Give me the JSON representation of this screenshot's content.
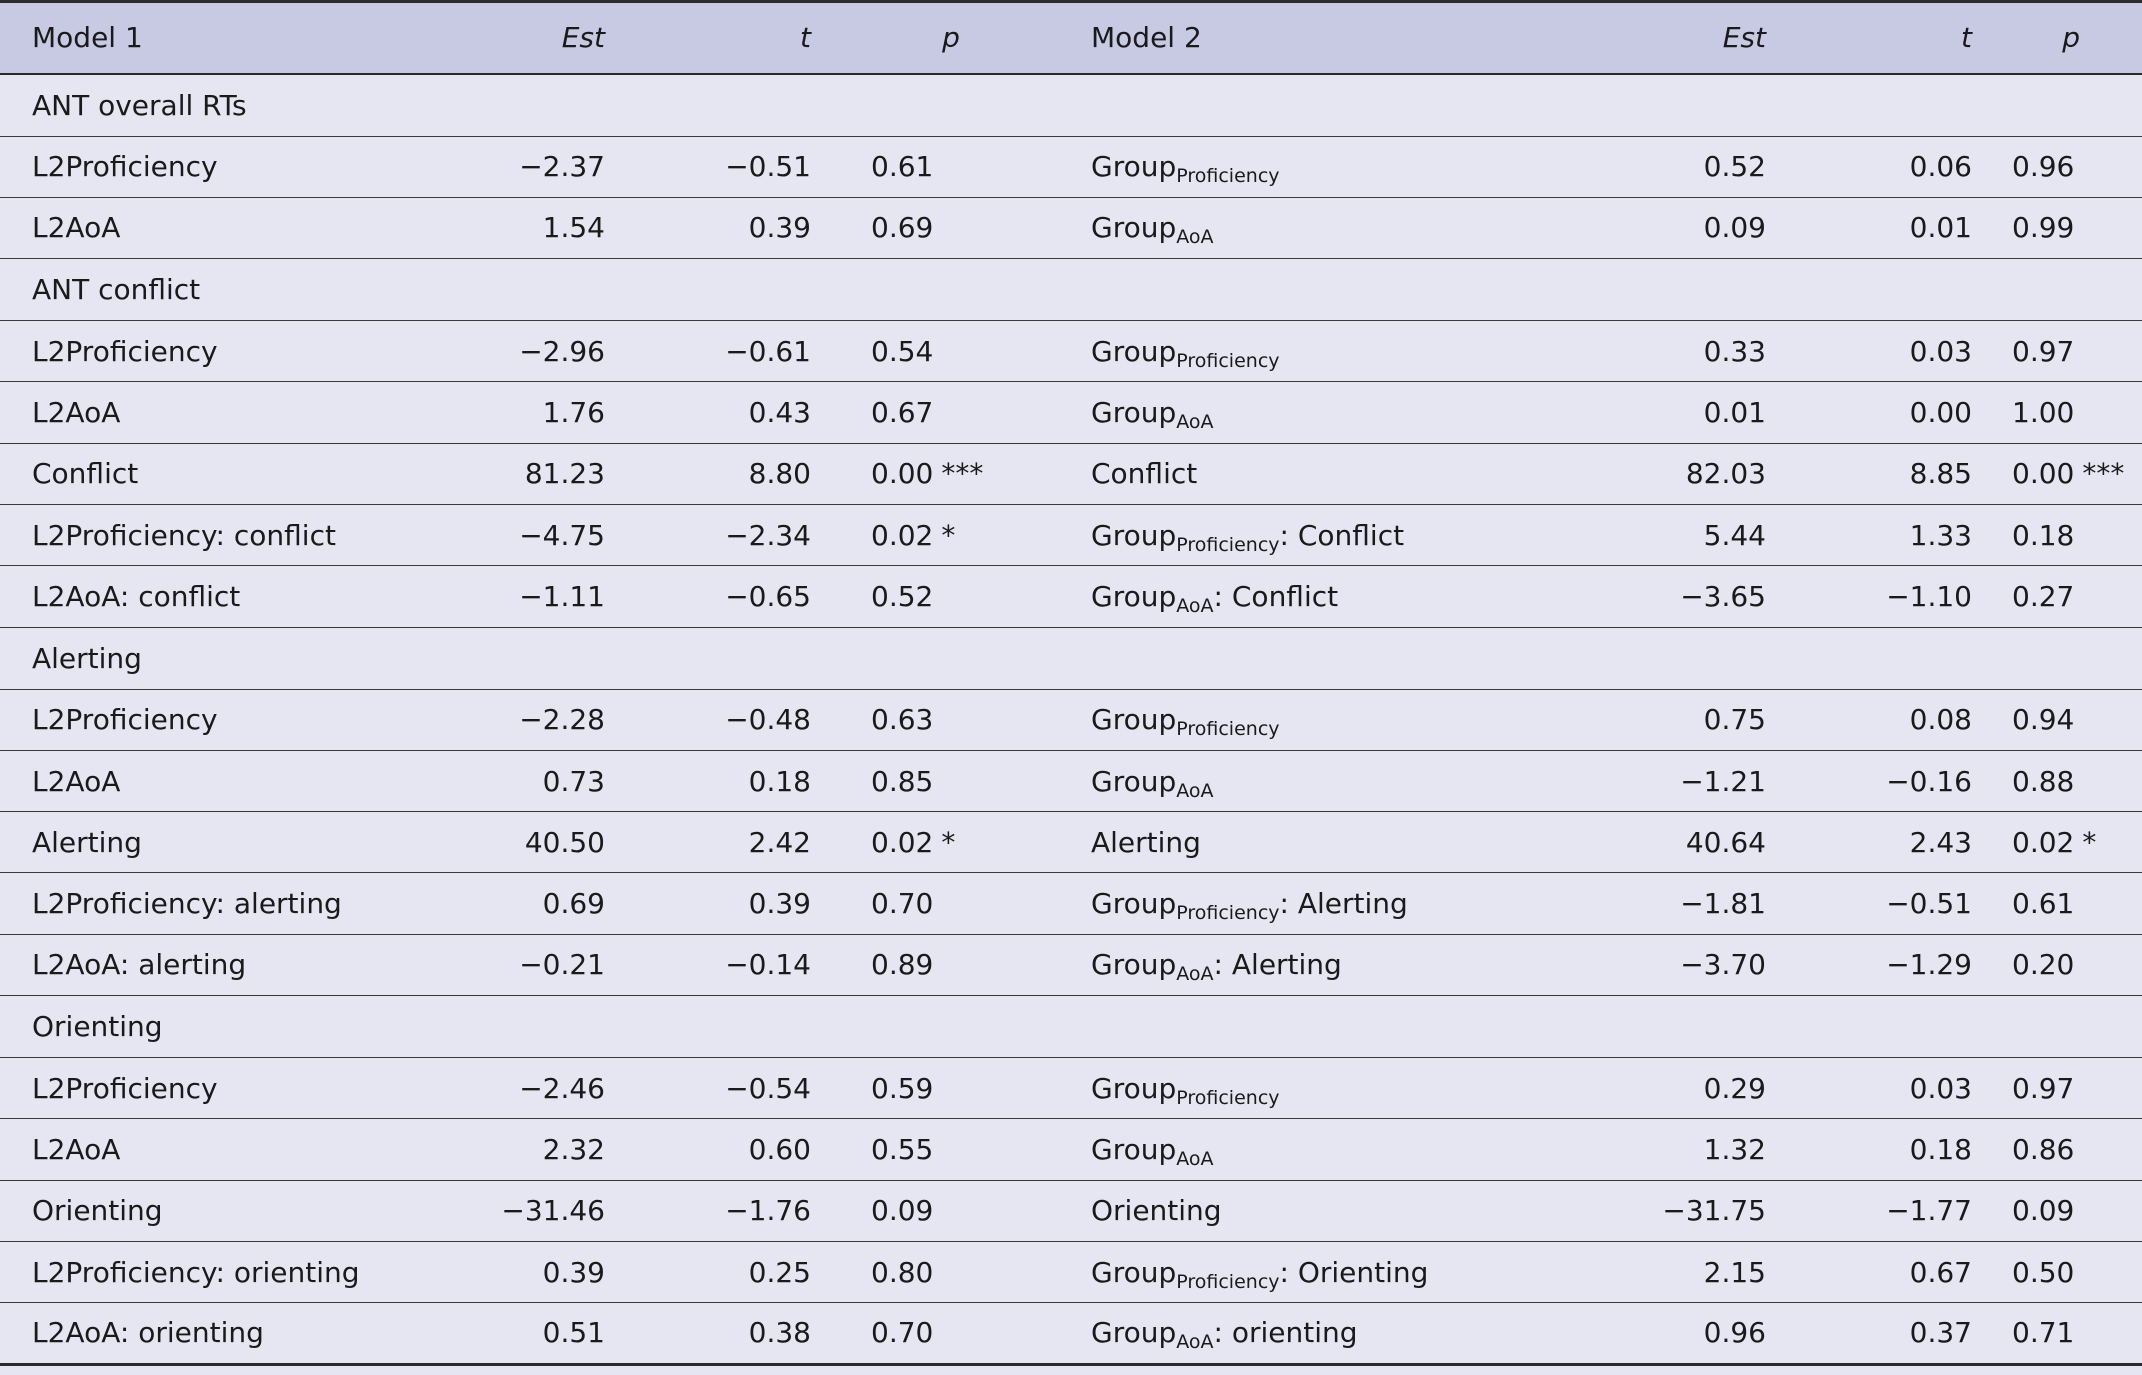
{
  "header": {
    "model1": "Model 1",
    "est1": "Est",
    "t1": "t",
    "p1": "p",
    "model2": "Model 2",
    "est2": "Est",
    "t2": "t",
    "p2": "p"
  },
  "sections": [
    {
      "title": "ANT overall RTs",
      "rows": [
        {
          "m1": "L2Proficiency",
          "est1": "−2.37",
          "t1": "−0.51",
          "p1": "0.61",
          "sig1": "",
          "m2_base": "Group",
          "m2_sub": "Proficiency",
          "m2_suffix": "",
          "est2": "0.52",
          "t2": "0.06",
          "p2": "0.96",
          "sig2": ""
        },
        {
          "m1": "L2AoA",
          "est1": "1.54",
          "t1": "0.39",
          "p1": "0.69",
          "sig1": "",
          "m2_base": "Group",
          "m2_sub": "AoA",
          "m2_suffix": "",
          "est2": "0.09",
          "t2": "0.01",
          "p2": "0.99",
          "sig2": ""
        }
      ]
    },
    {
      "title": "ANT conflict",
      "rows": [
        {
          "m1": "L2Proficiency",
          "est1": "−2.96",
          "t1": "−0.61",
          "p1": "0.54",
          "sig1": "",
          "m2_base": "Group",
          "m2_sub": "Proficiency",
          "m2_suffix": "",
          "est2": "0.33",
          "t2": "0.03",
          "p2": "0.97",
          "sig2": ""
        },
        {
          "m1": "L2AoA",
          "est1": "1.76",
          "t1": "0.43",
          "p1": "0.67",
          "sig1": "",
          "m2_base": "Group",
          "m2_sub": "AoA",
          "m2_suffix": "",
          "est2": "0.01",
          "t2": "0.00",
          "p2": "1.00",
          "sig2": ""
        },
        {
          "m1": "Conflict",
          "est1": "81.23",
          "t1": "8.80",
          "p1": "0.00",
          "sig1": "***",
          "m2_base": "Conflict",
          "m2_sub": "",
          "m2_suffix": "",
          "est2": "82.03",
          "t2": "8.85",
          "p2": "0.00",
          "sig2": "***"
        },
        {
          "m1": "L2Proficiency: conflict",
          "est1": "−4.75",
          "t1": "−2.34",
          "p1": "0.02",
          "sig1": "*",
          "m2_base": "Group",
          "m2_sub": "Proficiency",
          "m2_suffix": ": Conflict",
          "est2": "5.44",
          "t2": "1.33",
          "p2": "0.18",
          "sig2": ""
        },
        {
          "m1": "L2AoA: conflict",
          "est1": "−1.11",
          "t1": "−0.65",
          "p1": "0.52",
          "sig1": "",
          "m2_base": "Group",
          "m2_sub": "AoA",
          "m2_suffix": ": Conflict",
          "est2": "−3.65",
          "t2": "−1.10",
          "p2": "0.27",
          "sig2": ""
        }
      ]
    },
    {
      "title": "Alerting",
      "rows": [
        {
          "m1": "L2Proficiency",
          "est1": "−2.28",
          "t1": "−0.48",
          "p1": "0.63",
          "sig1": "",
          "m2_base": "Group",
          "m2_sub": "Proficiency",
          "m2_suffix": "",
          "est2": "0.75",
          "t2": "0.08",
          "p2": "0.94",
          "sig2": ""
        },
        {
          "m1": "L2AoA",
          "est1": "0.73",
          "t1": "0.18",
          "p1": "0.85",
          "sig1": "",
          "m2_base": "Group",
          "m2_sub": "AoA",
          "m2_suffix": "",
          "est2": "−1.21",
          "t2": "−0.16",
          "p2": "0.88",
          "sig2": ""
        },
        {
          "m1": "Alerting",
          "est1": "40.50",
          "t1": "2.42",
          "p1": "0.02",
          "sig1": "*",
          "m2_base": "Alerting",
          "m2_sub": "",
          "m2_suffix": "",
          "est2": "40.64",
          "t2": "2.43",
          "p2": "0.02",
          "sig2": "*"
        },
        {
          "m1": "L2Proficiency: alerting",
          "est1": "0.69",
          "t1": "0.39",
          "p1": "0.70",
          "sig1": "",
          "m2_base": "Group",
          "m2_sub": "Proficiency",
          "m2_suffix": ": Alerting",
          "est2": "−1.81",
          "t2": "−0.51",
          "p2": "0.61",
          "sig2": ""
        },
        {
          "m1": "L2AoA: alerting",
          "est1": "−0.21",
          "t1": "−0.14",
          "p1": "0.89",
          "sig1": "",
          "m2_base": "Group",
          "m2_sub": "AoA",
          "m2_suffix": ": Alerting",
          "est2": "−3.70",
          "t2": "−1.29",
          "p2": "0.20",
          "sig2": ""
        }
      ]
    },
    {
      "title": "Orienting",
      "rows": [
        {
          "m1": "L2Proficiency",
          "est1": "−2.46",
          "t1": "−0.54",
          "p1": "0.59",
          "sig1": "",
          "m2_base": "Group",
          "m2_sub": "Proficiency",
          "m2_suffix": "",
          "est2": "0.29",
          "t2": "0.03",
          "p2": "0.97",
          "sig2": ""
        },
        {
          "m1": "L2AoA",
          "est1": "2.32",
          "t1": "0.60",
          "p1": "0.55",
          "sig1": "",
          "m2_base": "Group",
          "m2_sub": "AoA",
          "m2_suffix": "",
          "est2": "1.32",
          "t2": "0.18",
          "p2": "0.86",
          "sig2": ""
        },
        {
          "m1": "Orienting",
          "est1": "−31.46",
          "t1": "−1.76",
          "p1": "0.09",
          "sig1": "",
          "m2_base": "Orienting",
          "m2_sub": "",
          "m2_suffix": "",
          "est2": "−31.75",
          "t2": "−1.77",
          "p2": "0.09",
          "sig2": ""
        },
        {
          "m1": "L2Proficiency: orienting",
          "est1": "0.39",
          "t1": "0.25",
          "p1": "0.80",
          "sig1": "",
          "m2_base": "Group",
          "m2_sub": "Proficiency",
          "m2_suffix": ": Orienting",
          "est2": "2.15",
          "t2": "0.67",
          "p2": "0.50",
          "sig2": ""
        },
        {
          "m1": "L2AoA: orienting",
          "est1": "0.51",
          "t1": "0.38",
          "p1": "0.70",
          "sig1": "",
          "m2_base": "Group",
          "m2_sub": "AoA",
          "m2_suffix": ": orienting",
          "est2": "0.96",
          "t2": "0.37",
          "p2": "0.71",
          "sig2": ""
        }
      ]
    }
  ]
}
